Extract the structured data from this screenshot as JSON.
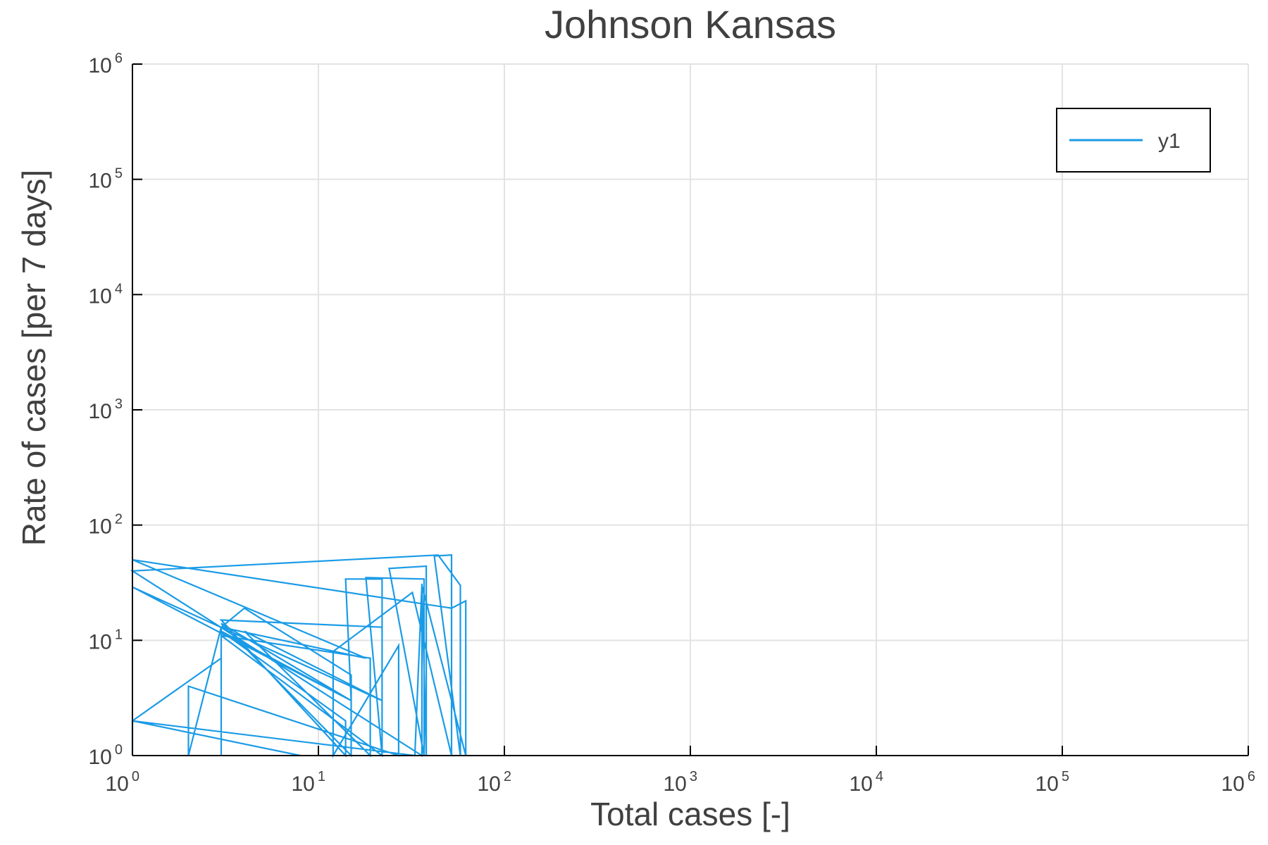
{
  "chart_data": {
    "type": "line",
    "title": "Johnson Kansas",
    "xlabel": "Total cases [-]",
    "ylabel": "Rate of cases [per 7 days]",
    "x_scale": "log",
    "y_scale": "log",
    "xlim": [
      1,
      1000000
    ],
    "ylim": [
      1,
      1000000
    ],
    "grid": true,
    "legend_position": "top-right",
    "x_ticks": [
      {
        "base": "10",
        "exp": "0",
        "value": 1
      },
      {
        "base": "10",
        "exp": "1",
        "value": 10
      },
      {
        "base": "10",
        "exp": "2",
        "value": 100
      },
      {
        "base": "10",
        "exp": "3",
        "value": 1000
      },
      {
        "base": "10",
        "exp": "4",
        "value": 10000
      },
      {
        "base": "10",
        "exp": "5",
        "value": 100000
      },
      {
        "base": "10",
        "exp": "6",
        "value": 1000000
      }
    ],
    "y_ticks": [
      {
        "base": "10",
        "exp": "0",
        "value": 1
      },
      {
        "base": "10",
        "exp": "1",
        "value": 10
      },
      {
        "base": "10",
        "exp": "2",
        "value": 100
      },
      {
        "base": "10",
        "exp": "3",
        "value": 1000
      },
      {
        "base": "10",
        "exp": "4",
        "value": 10000
      },
      {
        "base": "10",
        "exp": "5",
        "value": 100000
      },
      {
        "base": "10",
        "exp": "6",
        "value": 1000000
      }
    ],
    "series": [
      {
        "name": "y1",
        "color": "#1a9be6",
        "points": [
          [
            1,
            1
          ],
          [
            1,
            2
          ],
          [
            3,
            7
          ],
          [
            3,
            1
          ],
          [
            3,
            13
          ],
          [
            4,
            19
          ],
          [
            15,
            5
          ],
          [
            15,
            1
          ],
          [
            3,
            14
          ],
          [
            15,
            3
          ],
          [
            3,
            12
          ],
          [
            14,
            2
          ],
          [
            14,
            1
          ],
          [
            3,
            15
          ],
          [
            22,
            13
          ],
          [
            22,
            1
          ],
          [
            3,
            11
          ],
          [
            19,
            7
          ],
          [
            19,
            1
          ],
          [
            4,
            12
          ],
          [
            22,
            3
          ],
          [
            1,
            29
          ],
          [
            15,
            3
          ],
          [
            14,
            34
          ],
          [
            22,
            34
          ],
          [
            22,
            1
          ],
          [
            18,
            35
          ],
          [
            37,
            34
          ],
          [
            37,
            1
          ],
          [
            24,
            42
          ],
          [
            38,
            44
          ],
          [
            38,
            1
          ],
          [
            36,
            31
          ],
          [
            36,
            1
          ],
          [
            1,
            40
          ],
          [
            44,
            55
          ],
          [
            58,
            30
          ],
          [
            58,
            1
          ],
          [
            42,
            54
          ],
          [
            52,
            55
          ],
          [
            52,
            1
          ],
          [
            32,
            26
          ],
          [
            12,
            8
          ],
          [
            12,
            1
          ],
          [
            27,
            9
          ],
          [
            27,
            1
          ],
          [
            2,
            4
          ],
          [
            2,
            1
          ],
          [
            3,
            13
          ],
          [
            18,
            7
          ],
          [
            1,
            50
          ],
          [
            52,
            19
          ],
          [
            62,
            22
          ],
          [
            62,
            1
          ],
          [
            36,
            30
          ],
          [
            33,
            1
          ],
          [
            1,
            2
          ],
          [
            8,
            1
          ]
        ]
      }
    ]
  }
}
